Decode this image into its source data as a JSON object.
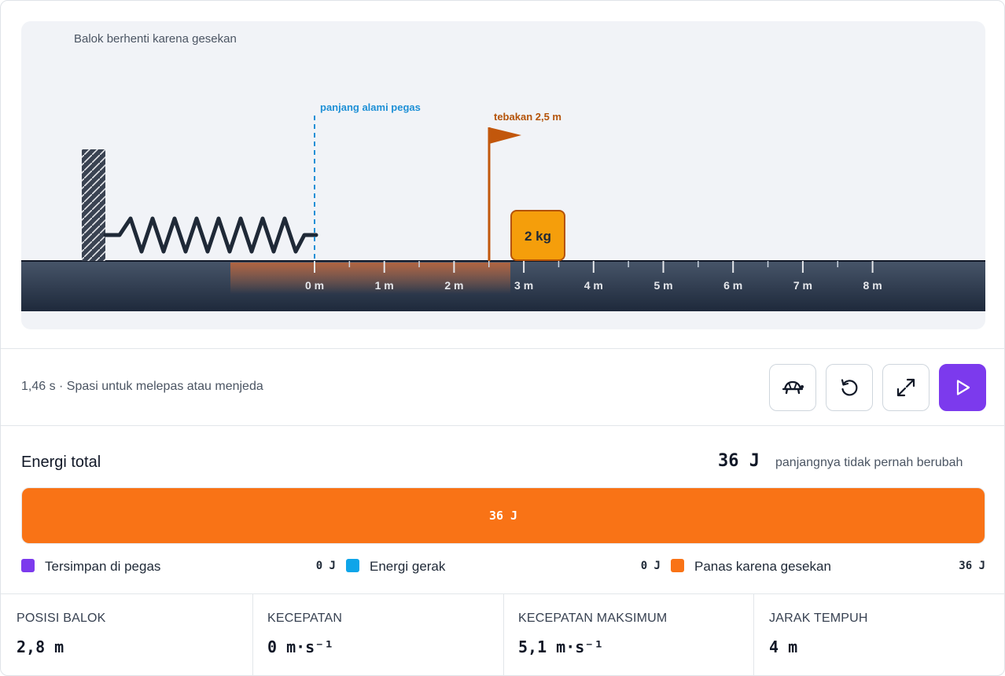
{
  "simulation": {
    "status": "Balok berhenti karena gesekan",
    "spring_rest_label": "panjang alami pegas",
    "guess_label": "tebakan 2,5 m",
    "block_label": "2 kg",
    "ruler_ticks": [
      "0 m",
      "1 m",
      "2 m",
      "3 m",
      "4 m",
      "5 m",
      "6 m",
      "7 m",
      "8 m"
    ]
  },
  "controls": {
    "hint": "1,46 s · Spasi untuk melepas atau menjeda",
    "buttons": [
      "turtle-icon",
      "reset-icon",
      "expand-icon",
      "play-icon"
    ]
  },
  "energy": {
    "title": "Energi total",
    "value": "36 J",
    "note": "panjangnya tidak pernah berubah",
    "bar_label": "36 J",
    "bar_fraction": 1.0,
    "legend": [
      {
        "label": "Tersimpan di pegas",
        "value": "0 J",
        "color": "#7c3aed"
      },
      {
        "label": "Energi gerak",
        "value": "0 J",
        "color": "#0ea5e9"
      },
      {
        "label": "Panas karena gesekan",
        "value": "36 J",
        "color": "#f97316"
      }
    ]
  },
  "stats": [
    {
      "label": "POSISI BALOK",
      "value": "2,8 m"
    },
    {
      "label": "KECEPATAN",
      "value": "0 m·s⁻¹"
    },
    {
      "label": "KECEPATAN MAKSIMUM",
      "value": "5,1 m·s⁻¹"
    },
    {
      "label": "JARAK TEMPUH",
      "value": "4 m"
    }
  ],
  "colors": {
    "accent": "#7c3aed",
    "friction": "#f97316",
    "guess_flag": "#c2570c",
    "spring_rest": "#1e90d6"
  }
}
